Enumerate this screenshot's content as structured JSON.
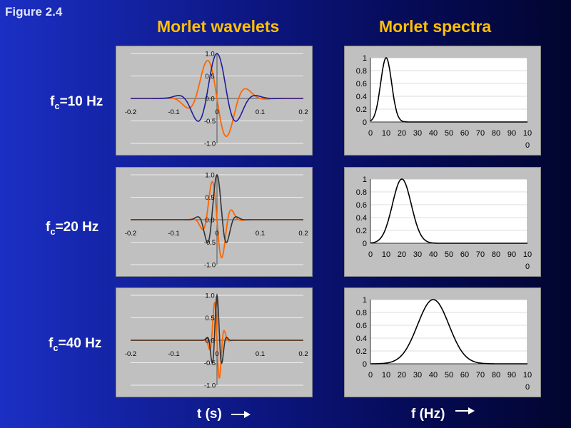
{
  "figure_label": "Figure 2.4",
  "titles": {
    "wavelets": "Morlet wavelets",
    "spectra": "Morlet spectra"
  },
  "rows": [
    {
      "label_main": "f",
      "label_sub": "c",
      "label_rest": "=10 Hz"
    },
    {
      "label_main": "f",
      "label_sub": "c",
      "label_rest": "=20 Hz"
    },
    {
      "label_main": "f",
      "label_sub": "c",
      "label_rest": "=40 Hz"
    }
  ],
  "axis_labels": {
    "time": "t (s)",
    "frequency": "f (Hz)"
  },
  "colors": {
    "real": "#1f1f9a",
    "imag": "#ff6600",
    "spectrum": "#000000",
    "title": "#ffc000"
  },
  "chart_data": [
    {
      "type": "line",
      "panel": "wavelet",
      "fc": 10,
      "sigma": 0.04,
      "xlim": [
        -0.2,
        0.2
      ],
      "ylim": [
        -1.0,
        1.0
      ],
      "xticks": [
        "-0.2",
        "-0.1",
        "0",
        "0.1",
        "0.2"
      ],
      "yticks": [
        "1.0",
        "0.5",
        "0.0",
        "-0.5",
        "-1.0"
      ],
      "series": [
        {
          "values": "real part",
          "color": "#1f1f9a"
        },
        {
          "values": "imag part",
          "color": "#ff6600"
        }
      ]
    },
    {
      "type": "line",
      "panel": "spectrum",
      "fc": 10,
      "sigma_f": 3.5,
      "xlim": [
        0,
        100
      ],
      "ylim": [
        0,
        1
      ],
      "xticks": [
        "0",
        "10",
        "20",
        "30",
        "40",
        "50",
        "60",
        "70",
        "80",
        "90",
        "10"
      ],
      "xtick_extra": "0",
      "yticks": [
        "1",
        "0.8",
        "0.6",
        "0.4",
        "0.2",
        "0"
      ]
    },
    {
      "type": "line",
      "panel": "wavelet",
      "fc": 20,
      "sigma": 0.02,
      "xlim": [
        -0.2,
        0.2
      ],
      "ylim": [
        -1.0,
        1.0
      ],
      "xticks": [
        "-0.2",
        "-0.1",
        "0",
        "0.1",
        "0.2"
      ],
      "yticks": [
        "1.0",
        "0.5",
        "0.0",
        "-0.5",
        "-1.0"
      ],
      "series": [
        {
          "values": "real part",
          "color": "#333333"
        },
        {
          "values": "imag part",
          "color": "#ff6600"
        }
      ]
    },
    {
      "type": "line",
      "panel": "spectrum",
      "fc": 20,
      "sigma_f": 6,
      "xlim": [
        0,
        100
      ],
      "ylim": [
        0,
        1
      ],
      "xticks": [
        "0",
        "10",
        "20",
        "30",
        "40",
        "50",
        "60",
        "70",
        "80",
        "90",
        "10"
      ],
      "xtick_extra": "0",
      "yticks": [
        "1",
        "0.8",
        "0.6",
        "0.4",
        "0.2",
        "0"
      ]
    },
    {
      "type": "line",
      "panel": "wavelet",
      "fc": 40,
      "sigma": 0.01,
      "xlim": [
        -0.2,
        0.2
      ],
      "ylim": [
        -1.0,
        1.0
      ],
      "xticks": [
        "-0.2",
        "-0.1",
        "0",
        "0.1",
        "0.2"
      ],
      "yticks": [
        "1.0",
        "0.5",
        "0.0",
        "-0.5",
        "-1.0"
      ],
      "series": [
        {
          "values": "real part",
          "color": "#333333"
        },
        {
          "values": "imag part",
          "color": "#ff6600"
        }
      ]
    },
    {
      "type": "line",
      "panel": "spectrum",
      "fc": 40,
      "sigma_f": 10,
      "xlim": [
        0,
        100
      ],
      "ylim": [
        0,
        1
      ],
      "xticks": [
        "0",
        "10",
        "20",
        "30",
        "40",
        "50",
        "60",
        "70",
        "80",
        "90",
        "10"
      ],
      "xtick_extra": "0",
      "yticks": [
        "1",
        "0.8",
        "0.6",
        "0.4",
        "0.2",
        "0"
      ]
    }
  ]
}
